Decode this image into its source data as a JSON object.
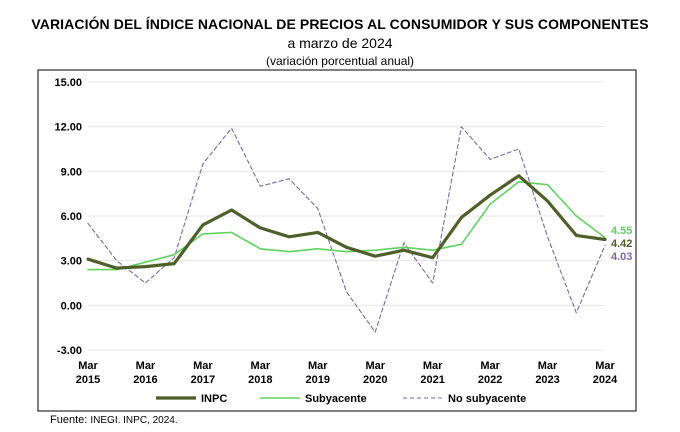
{
  "header": {
    "title": "VARIACIÓN DEL ÍNDICE NACIONAL DE PRECIOS AL CONSUMIDOR Y SUS COMPONENTES",
    "subtitle": "a marzo de 2024",
    "note": "(variación porcentual anual)"
  },
  "footer": {
    "source_label": "Fuente:",
    "source_value": "INEGI. INPC, 2024."
  },
  "colors": {
    "inpc": "#4f5f2a",
    "subyacente": "#5fd35f",
    "no_subyacente": "#7b69a8",
    "grid": "#e6e6e6"
  },
  "chart_data": {
    "type": "line",
    "title": "VARIACIÓN DEL ÍNDICE NACIONAL DE PRECIOS AL CONSUMIDOR Y SUS COMPONENTES",
    "subtitle": "a marzo de 2024 (variación porcentual anual)",
    "xlabel": "",
    "ylabel": "",
    "ylim": [
      -3,
      15
    ],
    "yticks": [
      "15.00",
      "12.00",
      "9.00",
      "6.00",
      "3.00",
      "0.00",
      "-3.00"
    ],
    "xticks": [
      {
        "m": "Mar",
        "y": "2015"
      },
      {
        "m": "Mar",
        "y": "2016"
      },
      {
        "m": "Mar",
        "y": "2017"
      },
      {
        "m": "Mar",
        "y": "2018"
      },
      {
        "m": "Mar",
        "y": "2019"
      },
      {
        "m": "Mar",
        "y": "2020"
      },
      {
        "m": "Mar",
        "y": "2021"
      },
      {
        "m": "Mar",
        "y": "2022"
      },
      {
        "m": "Mar",
        "y": "2023"
      },
      {
        "m": "Mar",
        "y": "2024"
      }
    ],
    "x_start": "2015-03",
    "x_frequency": "semiannual",
    "grid": true,
    "legend": "bottom",
    "series": [
      {
        "name": "INPC",
        "style": "solid-thick",
        "values": [
          3.1,
          2.5,
          2.6,
          2.8,
          5.4,
          6.4,
          5.2,
          4.6,
          4.9,
          3.9,
          3.3,
          3.7,
          3.2,
          5.9,
          7.4,
          8.7,
          7.0,
          4.7,
          4.42
        ],
        "end_label": "4.42"
      },
      {
        "name": "Subyacente",
        "style": "solid",
        "values": [
          2.4,
          2.4,
          2.9,
          3.4,
          4.8,
          4.9,
          3.8,
          3.6,
          3.8,
          3.6,
          3.7,
          3.9,
          3.7,
          4.1,
          6.8,
          8.3,
          8.1,
          6.0,
          4.55
        ],
        "end_label": "4.55"
      },
      {
        "name": "No subyacente",
        "style": "dashed",
        "values": [
          5.5,
          3.0,
          1.5,
          3.2,
          9.5,
          11.9,
          8.0,
          8.5,
          6.5,
          0.9,
          -1.8,
          4.2,
          1.5,
          12.0,
          9.8,
          10.5,
          4.6,
          -0.5,
          4.03
        ],
        "end_label": "4.03"
      }
    ]
  }
}
